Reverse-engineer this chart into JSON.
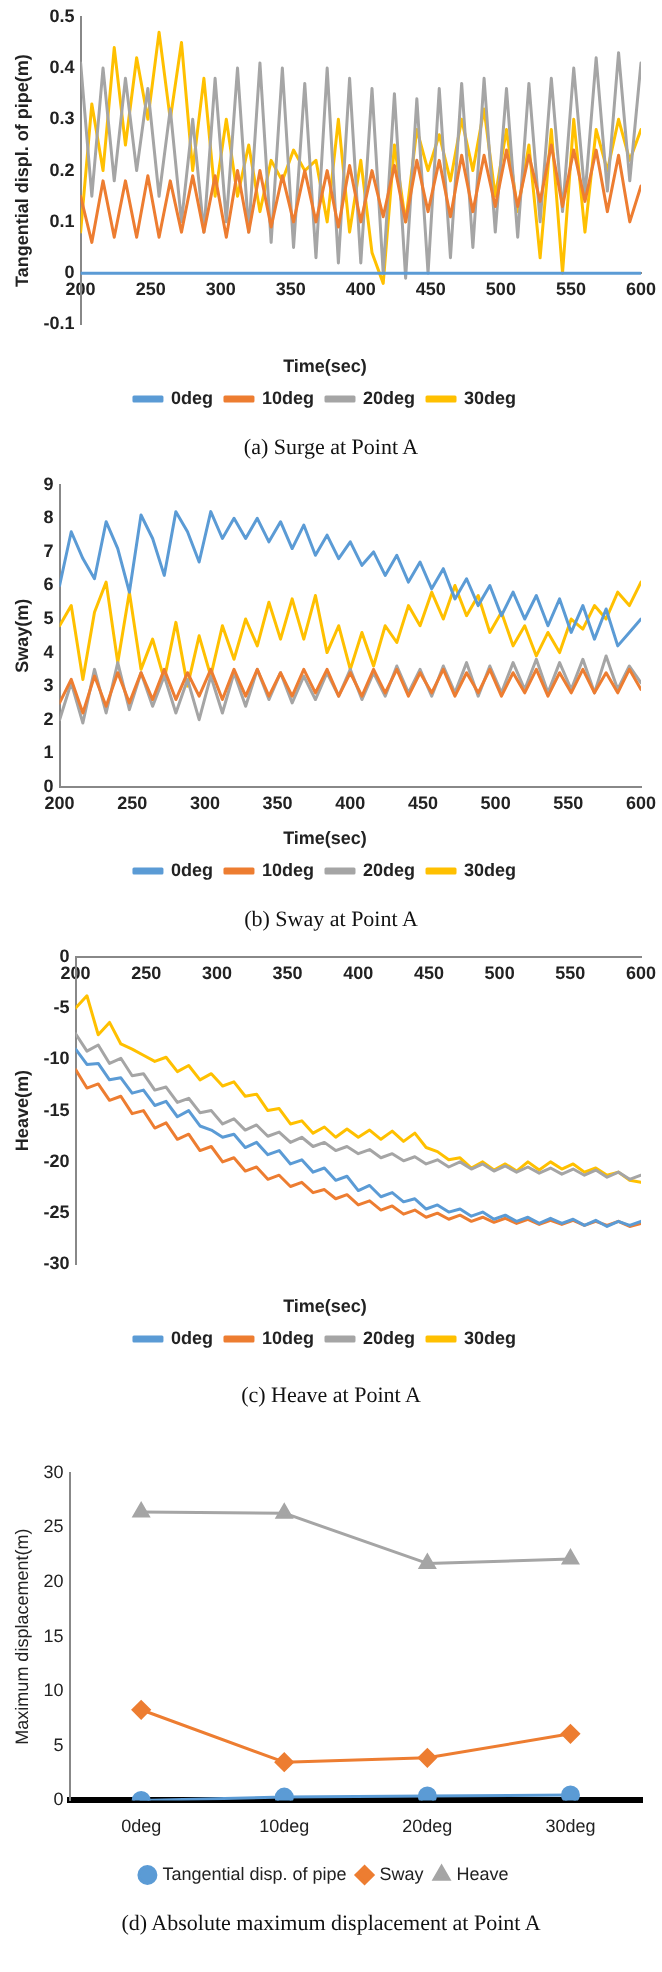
{
  "chart_data": [
    {
      "type": "line",
      "xlabel": "Time(sec)",
      "ylabel": "Tangential displ. of pipe(m)",
      "annotations": [
        "(a)  Surge at Point A"
      ],
      "legend": "bottom",
      "xlim": [
        200,
        600
      ],
      "xticks": [
        200,
        250,
        300,
        350,
        400,
        450,
        500,
        550,
        600
      ],
      "ylim": [
        -0.1,
        0.5
      ],
      "yticks": [
        -0.1,
        0,
        0.1,
        0.2,
        0.3,
        0.4,
        0.5
      ],
      "x": [
        200,
        208,
        216,
        224,
        232,
        240,
        248,
        256,
        264,
        272,
        280,
        288,
        296,
        304,
        312,
        320,
        328,
        336,
        344,
        352,
        360,
        368,
        376,
        384,
        392,
        400,
        408,
        416,
        424,
        432,
        440,
        448,
        456,
        464,
        472,
        480,
        488,
        496,
        504,
        512,
        520,
        528,
        536,
        544,
        552,
        560,
        568,
        576,
        584,
        592,
        600
      ],
      "series": [
        {
          "name": "0deg",
          "color": "#5b9bd5",
          "x": [
            200,
            600
          ],
          "values": [
            0,
            0
          ]
        },
        {
          "name": "10deg",
          "color": "#ed7d31",
          "values": [
            0.15,
            0.06,
            0.18,
            0.07,
            0.18,
            0.07,
            0.19,
            0.07,
            0.18,
            0.08,
            0.19,
            0.08,
            0.19,
            0.07,
            0.2,
            0.08,
            0.2,
            0.09,
            0.19,
            0.1,
            0.2,
            0.1,
            0.2,
            0.09,
            0.21,
            0.1,
            0.2,
            0.11,
            0.21,
            0.1,
            0.22,
            0.12,
            0.22,
            0.11,
            0.23,
            0.12,
            0.23,
            0.13,
            0.24,
            0.13,
            0.23,
            0.14,
            0.25,
            0.13,
            0.24,
            0.14,
            0.24,
            0.12,
            0.23,
            0.1,
            0.17
          ]
        },
        {
          "name": "20deg",
          "color": "#a5a5a5",
          "values": [
            0.41,
            0.15,
            0.4,
            0.18,
            0.38,
            0.2,
            0.36,
            0.15,
            0.32,
            0.1,
            0.3,
            0.08,
            0.38,
            0.1,
            0.4,
            0.08,
            0.41,
            0.06,
            0.4,
            0.05,
            0.37,
            0.03,
            0.4,
            0.02,
            0.38,
            0.02,
            0.36,
            0.0,
            0.35,
            -0.01,
            0.34,
            0.0,
            0.36,
            0.03,
            0.37,
            0.05,
            0.38,
            0.08,
            0.36,
            0.07,
            0.37,
            0.1,
            0.38,
            0.12,
            0.4,
            0.15,
            0.42,
            0.16,
            0.43,
            0.18,
            0.41
          ]
        },
        {
          "name": "30deg",
          "color": "#ffc000",
          "values": [
            0.08,
            0.33,
            0.2,
            0.44,
            0.25,
            0.42,
            0.3,
            0.47,
            0.3,
            0.45,
            0.2,
            0.38,
            0.15,
            0.3,
            0.15,
            0.25,
            0.12,
            0.22,
            0.18,
            0.24,
            0.2,
            0.22,
            0.1,
            0.3,
            0.08,
            0.22,
            0.04,
            -0.02,
            0.25,
            0.1,
            0.28,
            0.2,
            0.27,
            0.18,
            0.3,
            0.2,
            0.32,
            0.15,
            0.28,
            0.12,
            0.25,
            0.03,
            0.28,
            0.0,
            0.3,
            0.08,
            0.28,
            0.2,
            0.3,
            0.22,
            0.28
          ]
        }
      ]
    },
    {
      "type": "line",
      "xlabel": "Time(sec)",
      "ylabel": "Sway(m)",
      "annotations": [
        "(b)  Sway at Point A"
      ],
      "legend": "bottom",
      "xlim": [
        200,
        600
      ],
      "xticks": [
        200,
        250,
        300,
        350,
        400,
        450,
        500,
        550,
        600
      ],
      "ylim": [
        0,
        9
      ],
      "yticks": [
        0,
        1,
        2,
        3,
        4,
        5,
        6,
        7,
        8,
        9
      ],
      "x": [
        200,
        208,
        216,
        224,
        232,
        240,
        248,
        256,
        264,
        272,
        280,
        288,
        296,
        304,
        312,
        320,
        328,
        336,
        344,
        352,
        360,
        368,
        376,
        384,
        392,
        400,
        408,
        416,
        424,
        432,
        440,
        448,
        456,
        464,
        472,
        480,
        488,
        496,
        504,
        512,
        520,
        528,
        536,
        544,
        552,
        560,
        568,
        576,
        584,
        592,
        600
      ],
      "series": [
        {
          "name": "0deg",
          "color": "#5b9bd5",
          "values": [
            6.0,
            7.6,
            6.8,
            6.2,
            7.9,
            7.1,
            5.8,
            8.1,
            7.4,
            6.3,
            8.2,
            7.6,
            6.7,
            8.2,
            7.4,
            8.0,
            7.4,
            8.0,
            7.3,
            7.9,
            7.1,
            7.8,
            6.9,
            7.5,
            6.8,
            7.3,
            6.6,
            7.0,
            6.3,
            6.9,
            6.1,
            6.7,
            5.9,
            6.5,
            5.6,
            6.2,
            5.4,
            6.0,
            5.1,
            5.8,
            5.0,
            5.7,
            4.8,
            5.6,
            4.6,
            5.4,
            4.4,
            5.3,
            4.2,
            4.6,
            5.0
          ]
        },
        {
          "name": "10deg",
          "color": "#ed7d31",
          "values": [
            2.5,
            3.2,
            2.2,
            3.3,
            2.4,
            3.4,
            2.5,
            3.4,
            2.6,
            3.5,
            2.6,
            3.4,
            2.7,
            3.5,
            2.6,
            3.5,
            2.7,
            3.5,
            2.7,
            3.4,
            2.7,
            3.5,
            2.8,
            3.5,
            2.7,
            3.4,
            2.7,
            3.5,
            2.8,
            3.5,
            2.7,
            3.4,
            2.8,
            3.5,
            2.7,
            3.4,
            2.8,
            3.5,
            2.7,
            3.4,
            2.8,
            3.5,
            2.7,
            3.4,
            2.8,
            3.5,
            2.8,
            3.4,
            2.8,
            3.5,
            2.9
          ]
        },
        {
          "name": "20deg",
          "color": "#a5a5a5",
          "values": [
            2.0,
            3.1,
            1.9,
            3.5,
            2.2,
            3.7,
            2.3,
            3.4,
            2.4,
            3.3,
            2.2,
            3.2,
            2.0,
            3.3,
            2.2,
            3.4,
            2.4,
            3.5,
            2.6,
            3.4,
            2.5,
            3.3,
            2.6,
            3.4,
            2.7,
            3.5,
            2.6,
            3.4,
            2.7,
            3.6,
            2.8,
            3.5,
            2.7,
            3.6,
            2.8,
            3.7,
            2.7,
            3.6,
            2.8,
            3.7,
            2.9,
            3.8,
            2.8,
            3.7,
            2.9,
            3.8,
            2.8,
            3.9,
            2.9,
            3.6,
            3.1
          ]
        },
        {
          "name": "30deg",
          "color": "#ffc000",
          "values": [
            4.8,
            5.4,
            3.2,
            5.2,
            6.1,
            3.7,
            5.8,
            3.5,
            4.4,
            3.2,
            4.9,
            3.0,
            4.5,
            3.3,
            4.8,
            3.8,
            5.0,
            4.2,
            5.5,
            4.4,
            5.6,
            4.4,
            5.7,
            4.0,
            4.8,
            3.5,
            4.6,
            3.6,
            4.8,
            4.3,
            5.4,
            4.8,
            5.8,
            5.0,
            6.0,
            5.1,
            5.7,
            4.6,
            5.2,
            4.2,
            4.8,
            3.9,
            4.6,
            4.0,
            5.0,
            4.7,
            5.4,
            5.0,
            5.8,
            5.4,
            6.1
          ]
        }
      ]
    },
    {
      "type": "line",
      "xlabel": "Time(sec)",
      "ylabel": "Heave(m)",
      "annotations": [
        "(c)  Heave at Point A"
      ],
      "legend": "bottom",
      "xlim": [
        200,
        600
      ],
      "xticks": [
        200,
        250,
        300,
        350,
        400,
        450,
        500,
        550,
        600
      ],
      "ylim": [
        -30,
        0
      ],
      "yticks": [
        -30,
        -25,
        -20,
        -15,
        -10,
        -5,
        0
      ],
      "x": [
        200,
        208,
        216,
        224,
        232,
        240,
        248,
        256,
        264,
        272,
        280,
        288,
        296,
        304,
        312,
        320,
        328,
        336,
        344,
        352,
        360,
        368,
        376,
        384,
        392,
        400,
        408,
        416,
        424,
        432,
        440,
        448,
        456,
        464,
        472,
        480,
        488,
        496,
        504,
        512,
        520,
        528,
        536,
        544,
        552,
        560,
        568,
        576,
        584,
        592,
        600
      ],
      "series": [
        {
          "name": "0deg",
          "color": "#5b9bd5",
          "values": [
            -9.0,
            -10.5,
            -10.4,
            -12.0,
            -11.8,
            -13.3,
            -13.0,
            -14.5,
            -14.1,
            -15.6,
            -15.0,
            -16.5,
            -16.9,
            -17.6,
            -17.3,
            -18.6,
            -18.1,
            -19.3,
            -18.9,
            -20.2,
            -19.8,
            -21.0,
            -20.6,
            -21.8,
            -21.4,
            -22.8,
            -22.3,
            -23.4,
            -23.0,
            -23.9,
            -23.6,
            -24.6,
            -24.2,
            -24.9,
            -24.6,
            -25.3,
            -24.9,
            -25.6,
            -25.2,
            -25.8,
            -25.4,
            -26.0,
            -25.5,
            -26.0,
            -25.6,
            -26.2,
            -25.7,
            -26.3,
            -25.8,
            -26.2,
            -25.8
          ]
        },
        {
          "name": "10deg",
          "color": "#ed7d31",
          "values": [
            -11.0,
            -12.8,
            -12.4,
            -14.0,
            -13.6,
            -15.3,
            -15.0,
            -16.7,
            -16.2,
            -17.8,
            -17.3,
            -18.9,
            -18.5,
            -20.0,
            -19.6,
            -20.9,
            -20.5,
            -21.7,
            -21.3,
            -22.4,
            -22.0,
            -23.0,
            -22.7,
            -23.6,
            -23.2,
            -24.2,
            -23.8,
            -24.7,
            -24.3,
            -25.1,
            -24.7,
            -25.4,
            -25.0,
            -25.6,
            -25.2,
            -25.8,
            -25.4,
            -25.9,
            -25.5,
            -26.0,
            -25.6,
            -26.1,
            -25.7,
            -26.1,
            -25.7,
            -26.2,
            -25.8,
            -26.2,
            -25.8,
            -26.3,
            -26.0
          ]
        },
        {
          "name": "20deg",
          "color": "#a5a5a5",
          "values": [
            -7.5,
            -9.2,
            -8.6,
            -10.4,
            -9.9,
            -11.6,
            -11.4,
            -13.0,
            -12.7,
            -14.2,
            -13.8,
            -15.2,
            -15.0,
            -16.3,
            -15.8,
            -16.9,
            -16.4,
            -17.5,
            -17.1,
            -18.1,
            -17.6,
            -18.5,
            -18.1,
            -18.9,
            -18.5,
            -19.2,
            -18.8,
            -19.6,
            -19.2,
            -19.9,
            -19.5,
            -20.2,
            -19.8,
            -20.5,
            -20.0,
            -20.7,
            -20.2,
            -20.9,
            -20.4,
            -21.0,
            -20.5,
            -21.1,
            -20.6,
            -21.2,
            -20.7,
            -21.3,
            -20.8,
            -21.5,
            -21.0,
            -21.7,
            -21.3
          ]
        },
        {
          "name": "30deg",
          "color": "#ffc000",
          "values": [
            -5.0,
            -3.8,
            -7.6,
            -6.4,
            -8.5,
            -9.0,
            -9.6,
            -10.2,
            -9.8,
            -11.2,
            -10.6,
            -12.0,
            -11.4,
            -12.6,
            -12.2,
            -13.6,
            -13.4,
            -15.0,
            -14.8,
            -16.3,
            -16.0,
            -17.2,
            -16.6,
            -17.6,
            -16.8,
            -17.6,
            -16.9,
            -17.8,
            -17.0,
            -18.0,
            -17.2,
            -18.6,
            -19.0,
            -19.8,
            -19.6,
            -20.6,
            -20.0,
            -20.8,
            -20.2,
            -20.9,
            -20.0,
            -20.8,
            -20.0,
            -20.7,
            -20.2,
            -21.0,
            -20.6,
            -21.3,
            -21.0,
            -21.8,
            -22.0
          ]
        }
      ]
    },
    {
      "type": "line",
      "ylabel": "Maximum displacement(m)",
      "annotations": [
        "(d)  Absolute maximum displacement at Point A"
      ],
      "legend": "bottom",
      "categories": [
        "0deg",
        "10deg",
        "20deg",
        "30deg"
      ],
      "ylim": [
        0,
        30
      ],
      "yticks": [
        0,
        5,
        10,
        15,
        20,
        25,
        30
      ],
      "series": [
        {
          "name": "Tangential disp. of pipe",
          "color": "#5b9bd5",
          "marker": "circle",
          "values": [
            0,
            0.3,
            0.4,
            0.5
          ]
        },
        {
          "name": "Sway",
          "color": "#ed7d31",
          "marker": "diamond",
          "values": [
            8.3,
            3.5,
            3.9,
            6.1
          ]
        },
        {
          "name": "Heave",
          "color": "#a5a5a5",
          "marker": "triangle",
          "values": [
            26.4,
            26.3,
            21.7,
            22.1
          ]
        }
      ]
    }
  ]
}
